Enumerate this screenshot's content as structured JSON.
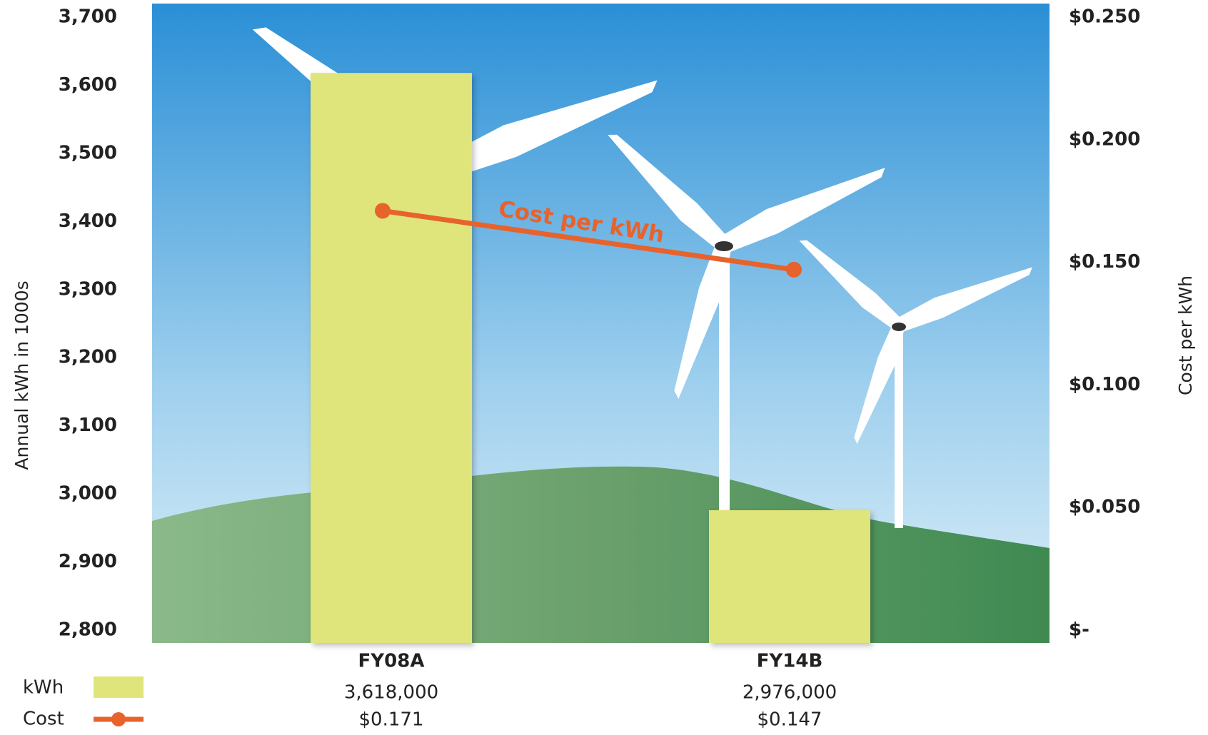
{
  "chart_data": {
    "type": "bar",
    "categories": [
      "FY08A",
      "FY14B"
    ],
    "series": [
      {
        "name": "kWh",
        "color": "#dfe57a",
        "values": [
          3618,
          2976
        ],
        "value_labels": [
          "3,618,000",
          "2,976,000"
        ]
      },
      {
        "name": "Cost",
        "color": "#e8622c",
        "type": "line",
        "axis": "y2",
        "values": [
          0.171,
          0.147
        ],
        "value_labels": [
          "$0.171",
          "$0.147"
        ]
      }
    ],
    "ylabel": "Annual kWh in 1000s",
    "y2label": "Cost per kWh",
    "annotation": "Cost per kWh",
    "ylim": [
      2800,
      3700
    ],
    "yticks": [
      {
        "value": 2800,
        "label": "2,800"
      },
      {
        "value": 2900,
        "label": "2,900"
      },
      {
        "value": 3000,
        "label": "3,000"
      },
      {
        "value": 3100,
        "label": "3,100"
      },
      {
        "value": 3200,
        "label": "3,200"
      },
      {
        "value": 3300,
        "label": "3,300"
      },
      {
        "value": 3400,
        "label": "3,400"
      },
      {
        "value": 3500,
        "label": "3,500"
      },
      {
        "value": 3600,
        "label": "3,600"
      },
      {
        "value": 3700,
        "label": "3,700"
      }
    ],
    "y2lim": [
      0,
      0.25
    ],
    "y2ticks": [
      {
        "value": 0,
        "label": "$-"
      },
      {
        "value": 0.05,
        "label": "$0.050"
      },
      {
        "value": 0.1,
        "label": "$0.100"
      },
      {
        "value": 0.15,
        "label": "$0.150"
      },
      {
        "value": 0.2,
        "label": "$0.200"
      },
      {
        "value": 0.25,
        "label": "$0.250"
      }
    ],
    "legend": "bottom-left"
  }
}
